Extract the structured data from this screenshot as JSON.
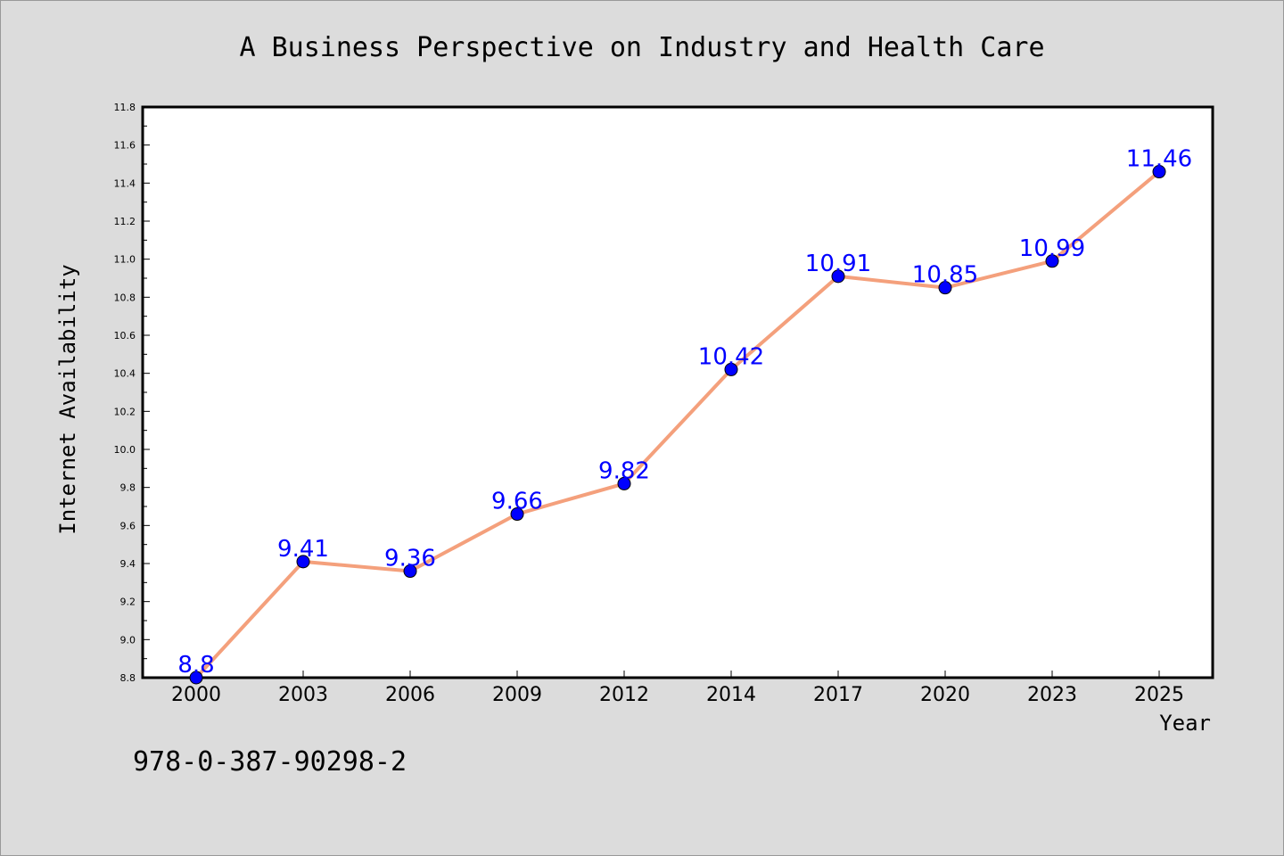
{
  "chart_data": {
    "type": "line",
    "title": "A Business Perspective on Industry and Health Care",
    "xlabel": "Year",
    "ylabel": "Internet Availability",
    "x": [
      "2000",
      "2003",
      "2006",
      "2009",
      "2012",
      "2014",
      "2017",
      "2020",
      "2023",
      "2025"
    ],
    "series": [
      {
        "values": [
          8.8,
          9.41,
          9.36,
          9.66,
          9.82,
          10.42,
          10.91,
          10.85,
          10.99,
          11.46
        ],
        "data_labels": [
          "8.8",
          "9.41",
          "9.36",
          "9.66",
          "9.82",
          "10.42",
          "10.91",
          "10.85",
          "10.99",
          "11.46"
        ],
        "line_color": "#f4a07c",
        "marker_color": "#0000ff"
      }
    ],
    "ylim": [
      8.8,
      11.8
    ],
    "yticks": [
      "8.8",
      "9.0",
      "9.2",
      "9.4",
      "9.6",
      "9.8",
      "10.0",
      "10.2",
      "10.4",
      "10.6",
      "10.8",
      "11.0",
      "11.2",
      "11.4",
      "11.6",
      "11.8"
    ],
    "grid": false,
    "legend": "none"
  },
  "footer": {
    "isbn": "978-0-387-90298-2"
  }
}
